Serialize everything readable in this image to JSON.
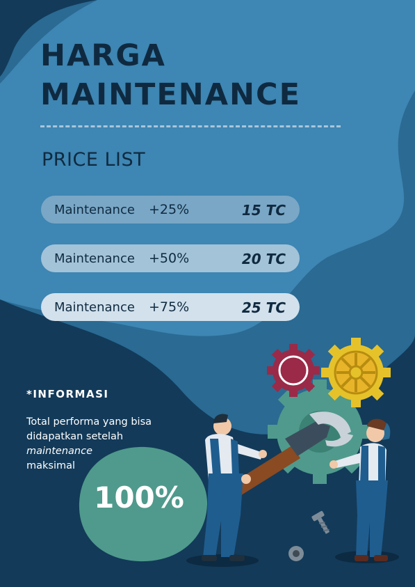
{
  "header": {
    "title_line1": "HARGA",
    "title_line2": "MAINTENANCE",
    "subtitle": "PRICE LIST"
  },
  "price_list": [
    {
      "name": "Maintenance",
      "increase": "+25%",
      "price": "15 TC"
    },
    {
      "name": "Maintenance",
      "increase": "+50%",
      "price": "20 TC"
    },
    {
      "name": "Maintenance",
      "increase": "+75%",
      "price": "25 TC"
    }
  ],
  "info": {
    "title": "*INFORMASI",
    "text_before": "Total performa yang bisa didapatkan setelah",
    "text_emphasis": "maintenance",
    "text_after": "maksimal",
    "percentage": "100%"
  },
  "colors": {
    "background_dark": "#133a59",
    "panel_blue": "#3e86b3",
    "accent_teal": "#4f9a8c",
    "gear_yellow": "#e6c22a",
    "gear_red": "#9a2a48"
  },
  "icons": [
    "gear-icon",
    "wrench-icon",
    "screw-icon",
    "worker-illustration"
  ]
}
